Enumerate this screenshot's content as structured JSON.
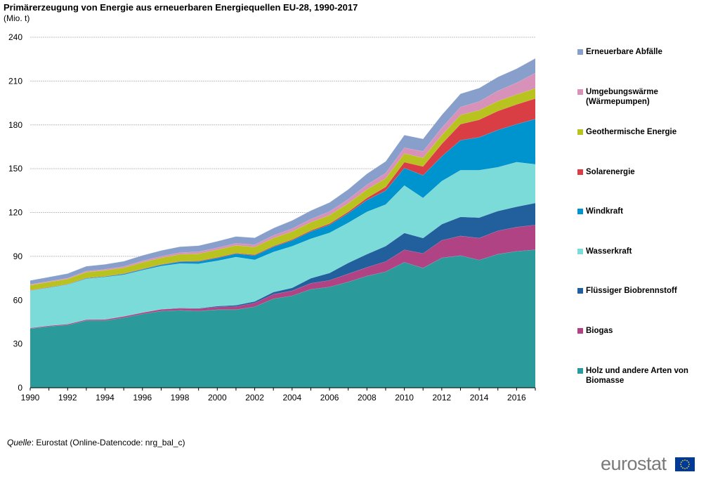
{
  "header": {
    "title": "Primärerzeugung von Energie aus erneuerbaren Energiequellen EU-28, 1990-2017",
    "unit": "(Mio. t)"
  },
  "footer": {
    "source_label": "Quelle",
    "source_text": ": Eurostat (Online-Datencode: nrg_bal_c)",
    "logo_text": "eurostat"
  },
  "chart_data": {
    "type": "area",
    "stacked": true,
    "title": "Primärerzeugung von Energie aus erneuerbaren Energiequellen EU-28, 1990-2017",
    "ylabel": "(Mio. t)",
    "xlabel": "",
    "ylim": [
      0,
      240
    ],
    "yticks": [
      0,
      30,
      60,
      90,
      120,
      150,
      180,
      210,
      240
    ],
    "xtick_labels": [
      "1990",
      "1992",
      "1994",
      "1996",
      "1998",
      "2000",
      "2002",
      "2004",
      "2006",
      "2008",
      "2010",
      "2012",
      "2014",
      "2016"
    ],
    "grid": true,
    "legend_position": "right",
    "x": [
      1990,
      1991,
      1992,
      1993,
      1994,
      1995,
      1996,
      1997,
      1998,
      1999,
      2000,
      2001,
      2002,
      2003,
      2004,
      2005,
      2006,
      2007,
      2008,
      2009,
      2010,
      2011,
      2012,
      2013,
      2014,
      2015,
      2016,
      2017
    ],
    "series": [
      {
        "name": "Holz und andere Arten von Biomasse",
        "color": "#2a9a9a",
        "values": [
          40.5,
          42,
          43,
          46,
          46,
          48,
          50.5,
          52.5,
          53,
          52.5,
          53.5,
          53.5,
          55.5,
          61,
          63,
          67.5,
          69,
          72.5,
          76.5,
          79.5,
          86,
          82,
          89,
          90.5,
          87.5,
          91.5,
          93.5,
          94.5
        ]
      },
      {
        "name": "Biogas",
        "color": "#b04384",
        "values": [
          0.5,
          0.5,
          0.6,
          0.7,
          0.8,
          0.9,
          1.0,
          1.2,
          1.4,
          1.6,
          1.8,
          2.2,
          2.6,
          3.0,
          3.4,
          4.0,
          4.6,
          5.5,
          6.0,
          7.0,
          8.5,
          10.0,
          12.0,
          13.5,
          15.0,
          16.0,
          16.5,
          17.0
        ]
      },
      {
        "name": "Flüssiger Biobrennstoff",
        "color": "#22609d",
        "values": [
          0,
          0,
          0,
          0,
          0,
          0,
          0,
          0.1,
          0.2,
          0.3,
          0.6,
          0.8,
          1.0,
          1.5,
          2.0,
          3.5,
          5.0,
          7.5,
          9.0,
          10.5,
          11.5,
          10.5,
          11.0,
          13.0,
          14.0,
          13.5,
          14.0,
          15.0
        ]
      },
      {
        "name": "Wasserkraft",
        "color": "#7adbd8",
        "values": [
          25.5,
          26,
          27,
          28,
          29,
          28.5,
          29,
          29.5,
          30.5,
          30.5,
          31,
          33,
          28.5,
          27.5,
          28.5,
          27,
          27.5,
          27.5,
          29,
          28.5,
          32.5,
          27.5,
          29.5,
          32,
          32.5,
          30,
          30.5,
          26.5
        ]
      },
      {
        "name": "Windkraft",
        "color": "#0094cf",
        "values": [
          0.1,
          0.2,
          0.2,
          0.3,
          0.4,
          0.5,
          0.6,
          0.9,
          1.2,
          1.6,
          2.0,
          2.3,
          3.0,
          3.5,
          4.0,
          5.0,
          5.5,
          6.5,
          8.0,
          9.5,
          12.0,
          15.5,
          17.0,
          20.5,
          22.5,
          25.5,
          26.0,
          31.0
        ]
      },
      {
        "name": "Solarenergie",
        "color": "#d93e44",
        "values": [
          0.2,
          0.2,
          0.2,
          0.2,
          0.2,
          0.3,
          0.3,
          0.3,
          0.3,
          0.3,
          0.4,
          0.4,
          0.5,
          0.5,
          0.6,
          0.7,
          0.8,
          1.0,
          1.5,
          2.5,
          4.0,
          6.0,
          8.5,
          11.0,
          12.0,
          13.0,
          13.5,
          14.0
        ]
      },
      {
        "name": "Geothermische Energie",
        "color": "#b8c320",
        "values": [
          3.5,
          3.5,
          3.5,
          4.0,
          4.0,
          4.0,
          4.5,
          4.5,
          4.8,
          5.0,
          5.2,
          5.3,
          5.3,
          5.5,
          5.5,
          5.6,
          5.8,
          5.8,
          5.8,
          5.9,
          5.9,
          6.0,
          6.0,
          6.3,
          6.5,
          6.8,
          6.8,
          7.0
        ]
      },
      {
        "name": "Umgebungswärme (Wärmepumpen)",
        "color": "#d891b8",
        "values": [
          0.5,
          0.5,
          0.6,
          0.7,
          0.8,
          0.9,
          1.0,
          1.1,
          1.2,
          1.3,
          1.4,
          1.5,
          1.6,
          1.8,
          2.0,
          2.2,
          2.5,
          2.8,
          3.2,
          3.6,
          4.0,
          4.4,
          5.0,
          5.5,
          6.0,
          7.0,
          8.0,
          10.5
        ]
      },
      {
        "name": "Erneuerbare Abfälle",
        "color": "#879fca",
        "values": [
          2.7,
          2.9,
          3.1,
          3.3,
          3.3,
          3.5,
          3.7,
          3.9,
          4.0,
          4.2,
          4.4,
          4.6,
          4.7,
          5.0,
          5.5,
          5.8,
          6.2,
          6.7,
          7.5,
          8.0,
          8.6,
          8.5,
          8.8,
          9.0,
          9.2,
          9.5,
          9.7,
          10.0
        ]
      }
    ]
  }
}
